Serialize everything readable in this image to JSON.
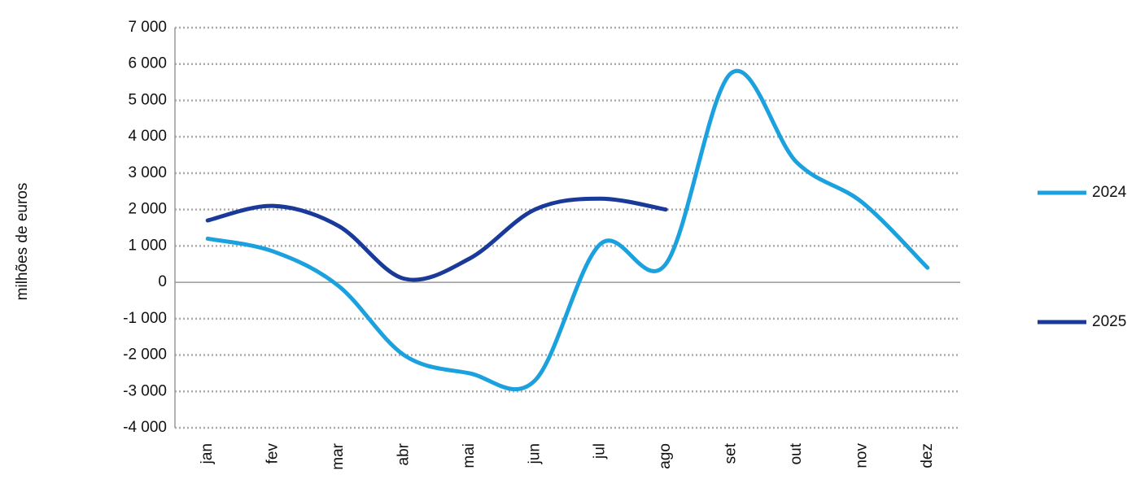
{
  "chart_data": {
    "type": "line",
    "y_label": "milhões de euros",
    "categories": [
      "jan",
      "fev",
      "mar",
      "abr",
      "mai",
      "jun",
      "jul",
      "ago",
      "set",
      "out",
      "nov",
      "dez"
    ],
    "series": [
      {
        "name": "2024",
        "color": "#1ba1dd",
        "values": [
          1200,
          850,
          -100,
          -2000,
          -2500,
          -2700,
          1050,
          500,
          5750,
          3300,
          2200,
          400
        ]
      },
      {
        "name": "2025",
        "color": "#1a3a9a",
        "values": [
          1700,
          2100,
          1550,
          100,
          650,
          2000,
          2300,
          2000,
          null,
          null,
          null,
          null
        ]
      }
    ],
    "ylim": [
      -4000,
      7000
    ],
    "yticks": [
      {
        "value": -4000,
        "label": "-4 000"
      },
      {
        "value": -3000,
        "label": "-3 000"
      },
      {
        "value": -2000,
        "label": "-2 000"
      },
      {
        "value": -1000,
        "label": "-1 000"
      },
      0,
      {
        "value": 1000,
        "label": "1 000"
      },
      {
        "value": 2000,
        "label": "2 000"
      },
      {
        "value": 3000,
        "label": "3 000"
      },
      {
        "value": 4000,
        "label": "4 000"
      },
      {
        "value": 5000,
        "label": "5 000"
      },
      {
        "value": 6000,
        "label": "6 000"
      },
      {
        "value": 7000,
        "label": "7 000"
      }
    ],
    "grid": true,
    "legend": "right"
  }
}
